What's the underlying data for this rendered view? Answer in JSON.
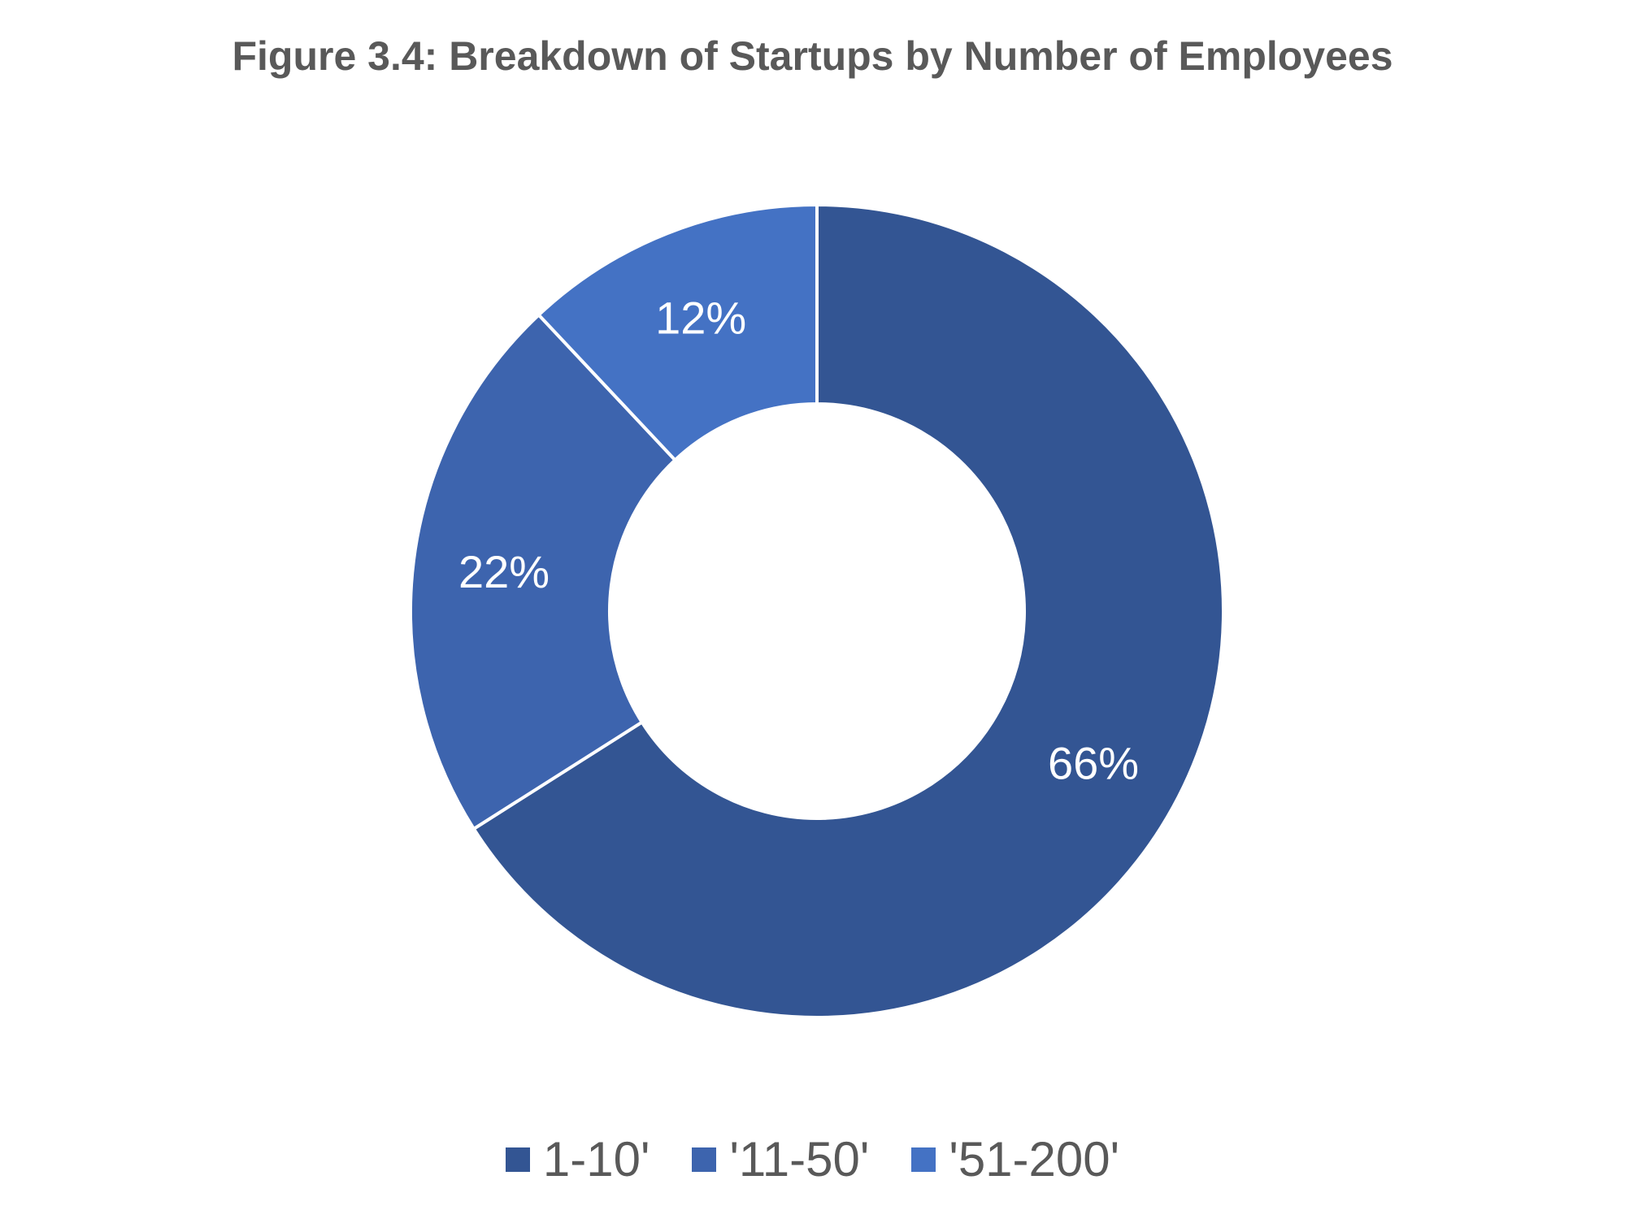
{
  "chart_data": {
    "type": "pie",
    "title": "Figure 3.4: Breakdown of Startups by Number of Employees",
    "donut": true,
    "legend_position": "bottom",
    "slices": [
      {
        "label": "1-10'",
        "value": 66,
        "display": "66%",
        "color": "#335593"
      },
      {
        "label": "'11-50'",
        "value": 22,
        "display": "22%",
        "color": "#3d64ae"
      },
      {
        "label": "'51-200'",
        "value": 12,
        "display": "12%",
        "color": "#4472c4"
      }
    ]
  }
}
